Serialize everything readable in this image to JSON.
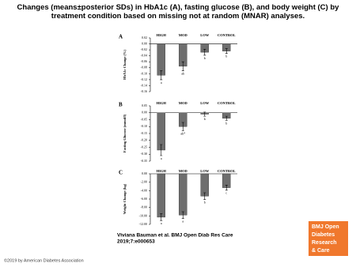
{
  "title": "Changes (means±posterior SDs) in HbA1c (A), fasting glucose (B), and body weight (C) by treatment condition based on missing not at random (MNAR) analyses.",
  "citation": [
    "Viviana Bauman et al. BMJ Open Diab Res Care",
    "2019;7:e000653"
  ],
  "logo": [
    "BMJ Open",
    "Diabetes",
    "Research",
    "& Care"
  ],
  "copyright": "©2019 by American Diabetes Association",
  "chart_data": [
    {
      "type": "bar",
      "panel_label": "A",
      "ylabel": "HbA1c Change (%)",
      "color": "#6e6e6e",
      "categories": [
        "HIGH",
        "MOD",
        "LOW",
        "CONTROL"
      ],
      "values": [
        -0.105,
        -0.075,
        -0.028,
        -0.024
      ],
      "errors": [
        0.015,
        0.015,
        0.01,
        0.008
      ],
      "annotations": [
        "a",
        "ab",
        "b",
        "b"
      ],
      "ylim": [
        -0.16,
        0.02
      ],
      "yticks": [
        {
          "value": 0.02,
          "label": "0.02"
        },
        {
          "value": 0,
          "label": "0.00"
        },
        {
          "value": -0.02,
          "label": "-0.02"
        },
        {
          "value": -0.04,
          "label": "-0.04"
        },
        {
          "value": -0.06,
          "label": "-0.06"
        },
        {
          "value": -0.08,
          "label": "-0.08"
        },
        {
          "value": -0.1,
          "label": "-0.10"
        },
        {
          "value": -0.12,
          "label": "-0.12"
        },
        {
          "value": -0.14,
          "label": "-0.14"
        },
        {
          "value": -0.16,
          "label": "-0.16"
        }
      ]
    },
    {
      "type": "bar",
      "panel_label": "B",
      "ylabel": "Fasting Glucose (mmol/l)",
      "color": "#6e6e6e",
      "categories": [
        "HIGH",
        "MOD",
        "LOW",
        "CONTROL"
      ],
      "values": [
        -0.27,
        -0.1,
        -0.01,
        -0.04
      ],
      "errors": [
        0.04,
        0.03,
        0.015,
        0.015
      ],
      "annotations": [
        "a",
        "ab*",
        "b",
        "b"
      ],
      "ylim": [
        -0.35,
        0.05
      ],
      "yticks": [
        {
          "value": 0.05,
          "label": "0.05"
        },
        {
          "value": 0,
          "label": "0.00"
        },
        {
          "value": -0.05,
          "label": "-0.05"
        },
        {
          "value": -0.1,
          "label": "-0.10"
        },
        {
          "value": -0.15,
          "label": "-0.15"
        },
        {
          "value": -0.2,
          "label": "-0.20"
        },
        {
          "value": -0.25,
          "label": "-0.25"
        },
        {
          "value": -0.3,
          "label": "-0.30"
        },
        {
          "value": -0.35,
          "label": "-0.35"
        }
      ]
    },
    {
      "type": "bar",
      "panel_label": "C",
      "ylabel": "Weight Change (kg)",
      "color": "#6e6e6e",
      "categories": [
        "HIGH",
        "MOD",
        "LOW",
        "CONTROL"
      ],
      "values": [
        -10.3,
        -9.8,
        -5.3,
        -3.3
      ],
      "errors": [
        0.8,
        0.8,
        0.8,
        0.6
      ],
      "annotations": [
        "a",
        "a",
        "b",
        "c"
      ],
      "ylim": [
        -12,
        0
      ],
      "yticks": [
        {
          "value": 0,
          "label": "0.00"
        },
        {
          "value": -2,
          "label": "-2.00"
        },
        {
          "value": -4,
          "label": "-4.00"
        },
        {
          "value": -6,
          "label": "-6.00"
        },
        {
          "value": -8,
          "label": "-8.00"
        },
        {
          "value": -10,
          "label": "-10.00"
        },
        {
          "value": -12,
          "label": "-12.00"
        }
      ]
    }
  ]
}
